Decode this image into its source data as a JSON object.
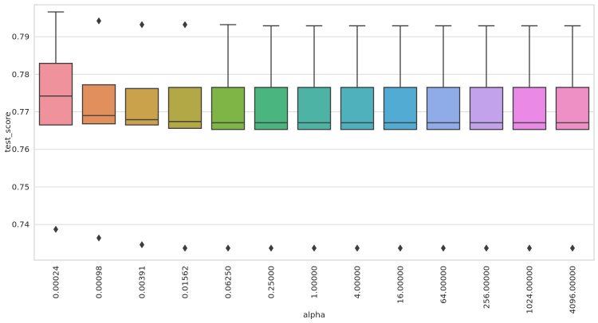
{
  "chart_data": {
    "type": "box",
    "xlabel": "alpha",
    "ylabel": "test_score",
    "ylim": [
      0.7305,
      0.7985
    ],
    "yticks": [
      0.74,
      0.75,
      0.76,
      0.77,
      0.78,
      0.79
    ],
    "ytick_labels": [
      "0.74",
      "0.75",
      "0.76",
      "0.77",
      "0.78",
      "0.79"
    ],
    "grid": true,
    "categories": [
      "0.00024",
      "0.00098",
      "0.00391",
      "0.01562",
      "0.06250",
      "0.25000",
      "1.00000",
      "4.00000",
      "16.00000",
      "64.00000",
      "256.00000",
      "1024.00000",
      "4096.00000"
    ],
    "colors": [
      "#ef929b",
      "#e08f5d",
      "#c9a24b",
      "#b2a846",
      "#7fb546",
      "#4bb57f",
      "#4cb3a5",
      "#4eb1bb",
      "#52abd2",
      "#8fabe8",
      "#c3a2ec",
      "#ea8ae6",
      "#ee8fc6"
    ],
    "boxes": [
      {
        "whisker_low": 0.7665,
        "q1": 0.7665,
        "median": 0.7742,
        "q3": 0.7829,
        "whisker_high": 0.7966,
        "outliers": [
          0.7387
        ]
      },
      {
        "whisker_low": 0.7668,
        "q1": 0.7668,
        "median": 0.769,
        "q3": 0.7772,
        "whisker_high": 0.7772,
        "outliers": [
          0.7942,
          0.7364
        ]
      },
      {
        "whisker_low": 0.7665,
        "q1": 0.7665,
        "median": 0.7679,
        "q3": 0.7762,
        "whisker_high": 0.7762,
        "outliers": [
          0.7932,
          0.7346
        ]
      },
      {
        "whisker_low": 0.7656,
        "q1": 0.7656,
        "median": 0.7674,
        "q3": 0.7765,
        "whisker_high": 0.7765,
        "outliers": [
          0.7932,
          0.7337
        ]
      },
      {
        "whisker_low": 0.7653,
        "q1": 0.7653,
        "median": 0.7671,
        "q3": 0.7765,
        "whisker_high": 0.7932,
        "outliers": [
          0.7337
        ]
      },
      {
        "whisker_low": 0.7653,
        "q1": 0.7653,
        "median": 0.7671,
        "q3": 0.7765,
        "whisker_high": 0.7929,
        "outliers": [
          0.7337
        ]
      },
      {
        "whisker_low": 0.7653,
        "q1": 0.7653,
        "median": 0.7671,
        "q3": 0.7765,
        "whisker_high": 0.7929,
        "outliers": [
          0.7337
        ]
      },
      {
        "whisker_low": 0.7653,
        "q1": 0.7653,
        "median": 0.7671,
        "q3": 0.7765,
        "whisker_high": 0.7929,
        "outliers": [
          0.7337
        ]
      },
      {
        "whisker_low": 0.7653,
        "q1": 0.7653,
        "median": 0.7671,
        "q3": 0.7765,
        "whisker_high": 0.7929,
        "outliers": [
          0.7337
        ]
      },
      {
        "whisker_low": 0.7653,
        "q1": 0.7653,
        "median": 0.7671,
        "q3": 0.7765,
        "whisker_high": 0.7929,
        "outliers": [
          0.7337
        ]
      },
      {
        "whisker_low": 0.7653,
        "q1": 0.7653,
        "median": 0.7671,
        "q3": 0.7765,
        "whisker_high": 0.7929,
        "outliers": [
          0.7337
        ]
      },
      {
        "whisker_low": 0.7653,
        "q1": 0.7653,
        "median": 0.7671,
        "q3": 0.7765,
        "whisker_high": 0.7929,
        "outliers": [
          0.7337
        ]
      },
      {
        "whisker_low": 0.7653,
        "q1": 0.7653,
        "median": 0.7671,
        "q3": 0.7765,
        "whisker_high": 0.7929,
        "outliers": [
          0.7337
        ]
      }
    ]
  }
}
